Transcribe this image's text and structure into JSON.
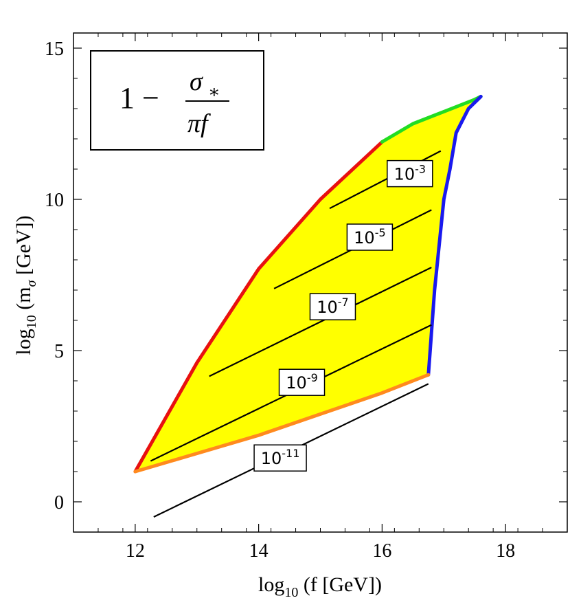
{
  "chart_data": {
    "type": "area",
    "xlabel": "log10 (f [GeV])",
    "ylabel": "log10 (mσ [GeV])",
    "xlabel_parts": {
      "pre": "log",
      "sub": "10",
      "post": " (f [GeV])"
    },
    "ylabel_parts": {
      "pre": "log",
      "sub": "10",
      "mid": " (m",
      "sub2": "σ",
      "post": " [GeV])"
    },
    "xlim": [
      11,
      19
    ],
    "ylim": [
      -1,
      15.5
    ],
    "x_ticks": [
      12,
      14,
      16,
      18
    ],
    "y_ticks": [
      0,
      5,
      10,
      15
    ],
    "x_tick_labels": [
      "12",
      "14",
      "16",
      "18"
    ],
    "y_tick_labels": [
      "0",
      "5",
      "10",
      "15"
    ],
    "legend_box": {
      "leading": "1 −",
      "numerator": "σ",
      "numerator_sub": "∗",
      "denominator": "πf",
      "placement": "top-left"
    },
    "region": {
      "fill": "#ffff00",
      "boundaries": [
        {
          "name": "upper-left",
          "color": "#e81010",
          "x": [
            12.0,
            13.0,
            14.0,
            15.0,
            16.0
          ],
          "y": [
            1.0,
            4.6,
            7.7,
            10.0,
            11.9
          ]
        },
        {
          "name": "upper-top",
          "color": "#22dd22",
          "x": [
            16.0,
            16.5,
            17.0,
            17.5,
            17.6
          ],
          "y": [
            11.9,
            12.5,
            12.9,
            13.3,
            13.4
          ]
        },
        {
          "name": "right",
          "color": "#1a1aee",
          "x": [
            17.6,
            17.4,
            17.2,
            17.1,
            17.0,
            16.95,
            16.9,
            16.85,
            16.8,
            16.75
          ],
          "y": [
            13.4,
            13.0,
            12.2,
            11.0,
            10.0,
            9.0,
            8.0,
            7.0,
            5.6,
            4.2
          ]
        },
        {
          "name": "bottom",
          "color": "#ff8a1e",
          "x": [
            16.75,
            16.0,
            15.0,
            14.0,
            13.0,
            12.0
          ],
          "y": [
            4.2,
            3.6,
            2.9,
            2.2,
            1.6,
            1.0
          ]
        }
      ]
    },
    "contours": [
      {
        "label_base": "10",
        "label_exp": "-3",
        "x": [
          15.15,
          16.95
        ],
        "y": [
          9.7,
          11.6
        ],
        "label_at": [
          16.45,
          10.85
        ]
      },
      {
        "label_base": "10",
        "label_exp": "-5",
        "x": [
          14.25,
          16.8
        ],
        "y": [
          7.05,
          9.65
        ],
        "label_at": [
          15.8,
          8.75
        ]
      },
      {
        "label_base": "10",
        "label_exp": "-7",
        "x": [
          13.2,
          16.8
        ],
        "y": [
          4.15,
          7.75
        ],
        "label_at": [
          15.2,
          6.45
        ]
      },
      {
        "label_base": "10",
        "label_exp": "-9",
        "x": [
          12.25,
          16.8
        ],
        "y": [
          1.35,
          5.85
        ],
        "label_at": [
          14.7,
          3.95
        ]
      },
      {
        "label_base": "10",
        "label_exp": "-11",
        "x": [
          12.3,
          16.75
        ],
        "y": [
          -0.5,
          3.9
        ],
        "label_at": [
          14.35,
          1.45
        ]
      }
    ],
    "grid": false
  }
}
